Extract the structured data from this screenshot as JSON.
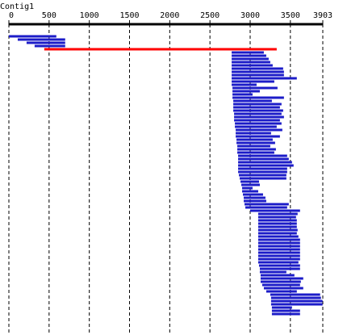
{
  "chart_data": {
    "type": "alignment",
    "title": "Contig1",
    "xlim": [
      0,
      3903
    ],
    "xticks": [
      0,
      500,
      1000,
      1500,
      2000,
      2500,
      3000,
      3500,
      3903
    ],
    "grid": true,
    "bars": [
      {
        "start": 0,
        "end": 590,
        "color": "#1c1cc8"
      },
      {
        "start": 110,
        "end": 700,
        "color": "#1c1cc8"
      },
      {
        "start": 220,
        "end": 700,
        "color": "#1c1cc8"
      },
      {
        "start": 320,
        "end": 700,
        "color": "#1c1cc8"
      },
      {
        "start": 440,
        "end": 3330,
        "color": "#ff0000"
      },
      {
        "start": 2770,
        "end": 3170,
        "color": "#1c1cc8"
      },
      {
        "start": 2770,
        "end": 3200,
        "color": "#1c1cc8"
      },
      {
        "start": 2770,
        "end": 3230,
        "color": "#1c1cc8"
      },
      {
        "start": 2770,
        "end": 3250,
        "color": "#1c1cc8"
      },
      {
        "start": 2770,
        "end": 3280,
        "color": "#1c1cc8"
      },
      {
        "start": 2770,
        "end": 3410,
        "color": "#1c1cc8"
      },
      {
        "start": 2770,
        "end": 3420,
        "color": "#1c1cc8"
      },
      {
        "start": 2770,
        "end": 3420,
        "color": "#1c1cc8"
      },
      {
        "start": 2770,
        "end": 3580,
        "color": "#1c1cc8"
      },
      {
        "start": 2770,
        "end": 3300,
        "color": "#1c1cc8"
      },
      {
        "start": 2770,
        "end": 3080,
        "color": "#1c1cc8"
      },
      {
        "start": 2780,
        "end": 3340,
        "color": "#1c1cc8"
      },
      {
        "start": 2780,
        "end": 3120,
        "color": "#1c1cc8"
      },
      {
        "start": 2780,
        "end": 3030,
        "color": "#1c1cc8"
      },
      {
        "start": 2780,
        "end": 3420,
        "color": "#1c1cc8"
      },
      {
        "start": 2790,
        "end": 3270,
        "color": "#1c1cc8"
      },
      {
        "start": 2790,
        "end": 3390,
        "color": "#1c1cc8"
      },
      {
        "start": 2790,
        "end": 3370,
        "color": "#1c1cc8"
      },
      {
        "start": 2790,
        "end": 3410,
        "color": "#1c1cc8"
      },
      {
        "start": 2800,
        "end": 3390,
        "color": "#1c1cc8"
      },
      {
        "start": 2800,
        "end": 3420,
        "color": "#1c1cc8"
      },
      {
        "start": 2800,
        "end": 3370,
        "color": "#1c1cc8"
      },
      {
        "start": 2810,
        "end": 3390,
        "color": "#1c1cc8"
      },
      {
        "start": 2810,
        "end": 3330,
        "color": "#1c1cc8"
      },
      {
        "start": 2820,
        "end": 3400,
        "color": "#1c1cc8"
      },
      {
        "start": 2820,
        "end": 3260,
        "color": "#1c1cc8"
      },
      {
        "start": 2820,
        "end": 3370,
        "color": "#1c1cc8"
      },
      {
        "start": 2830,
        "end": 3280,
        "color": "#1c1cc8"
      },
      {
        "start": 2830,
        "end": 3310,
        "color": "#1c1cc8"
      },
      {
        "start": 2840,
        "end": 3250,
        "color": "#1c1cc8"
      },
      {
        "start": 2840,
        "end": 3320,
        "color": "#1c1cc8"
      },
      {
        "start": 2840,
        "end": 3300,
        "color": "#1c1cc8"
      },
      {
        "start": 2850,
        "end": 3460,
        "color": "#1c1cc8"
      },
      {
        "start": 2850,
        "end": 3480,
        "color": "#1c1cc8"
      },
      {
        "start": 2850,
        "end": 3520,
        "color": "#1c1cc8"
      },
      {
        "start": 2850,
        "end": 3540,
        "color": "#1c1cc8"
      },
      {
        "start": 2850,
        "end": 3460,
        "color": "#1c1cc8"
      },
      {
        "start": 2850,
        "end": 3460,
        "color": "#1c1cc8"
      },
      {
        "start": 2860,
        "end": 3450,
        "color": "#1c1cc8"
      },
      {
        "start": 2870,
        "end": 3450,
        "color": "#1c1cc8"
      },
      {
        "start": 2880,
        "end": 3110,
        "color": "#1c1cc8"
      },
      {
        "start": 2890,
        "end": 3120,
        "color": "#1c1cc8"
      },
      {
        "start": 2900,
        "end": 3030,
        "color": "#1c1cc8"
      },
      {
        "start": 2900,
        "end": 3100,
        "color": "#1c1cc8"
      },
      {
        "start": 2910,
        "end": 3160,
        "color": "#1c1cc8"
      },
      {
        "start": 2920,
        "end": 3190,
        "color": "#1c1cc8"
      },
      {
        "start": 2920,
        "end": 3200,
        "color": "#1c1cc8"
      },
      {
        "start": 2930,
        "end": 3480,
        "color": "#1c1cc8"
      },
      {
        "start": 2940,
        "end": 3460,
        "color": "#1c1cc8"
      },
      {
        "start": 3000,
        "end": 3620,
        "color": "#1c1cc8"
      },
      {
        "start": 3100,
        "end": 3590,
        "color": "#1c1cc8"
      },
      {
        "start": 3100,
        "end": 3570,
        "color": "#1c1cc8"
      },
      {
        "start": 3100,
        "end": 3580,
        "color": "#1c1cc8"
      },
      {
        "start": 3100,
        "end": 3580,
        "color": "#1c1cc8"
      },
      {
        "start": 3100,
        "end": 3580,
        "color": "#1c1cc8"
      },
      {
        "start": 3100,
        "end": 3590,
        "color": "#1c1cc8"
      },
      {
        "start": 3100,
        "end": 3580,
        "color": "#1c1cc8"
      },
      {
        "start": 3100,
        "end": 3600,
        "color": "#1c1cc8"
      },
      {
        "start": 3100,
        "end": 3620,
        "color": "#1c1cc8"
      },
      {
        "start": 3100,
        "end": 3620,
        "color": "#1c1cc8"
      },
      {
        "start": 3100,
        "end": 3620,
        "color": "#1c1cc8"
      },
      {
        "start": 3100,
        "end": 3620,
        "color": "#1c1cc8"
      },
      {
        "start": 3100,
        "end": 3620,
        "color": "#1c1cc8"
      },
      {
        "start": 3100,
        "end": 3620,
        "color": "#1c1cc8"
      },
      {
        "start": 3100,
        "end": 3620,
        "color": "#1c1cc8"
      },
      {
        "start": 3100,
        "end": 3600,
        "color": "#1c1cc8"
      },
      {
        "start": 3110,
        "end": 3620,
        "color": "#1c1cc8"
      },
      {
        "start": 3120,
        "end": 3620,
        "color": "#1c1cc8"
      },
      {
        "start": 3120,
        "end": 3450,
        "color": "#1c1cc8"
      },
      {
        "start": 3130,
        "end": 3550,
        "color": "#1c1cc8"
      },
      {
        "start": 3130,
        "end": 3660,
        "color": "#1c1cc8"
      },
      {
        "start": 3130,
        "end": 3630,
        "color": "#1c1cc8"
      },
      {
        "start": 3150,
        "end": 3620,
        "color": "#1c1cc8"
      },
      {
        "start": 3170,
        "end": 3660,
        "color": "#1c1cc8"
      },
      {
        "start": 3200,
        "end": 3580,
        "color": "#1c1cc8"
      },
      {
        "start": 3250,
        "end": 3870,
        "color": "#1c1cc8"
      },
      {
        "start": 3260,
        "end": 3880,
        "color": "#1c1cc8"
      },
      {
        "start": 3260,
        "end": 3900,
        "color": "#1c1cc8"
      },
      {
        "start": 3260,
        "end": 3900,
        "color": "#1c1cc8"
      },
      {
        "start": 3270,
        "end": 3520,
        "color": "#1c1cc8"
      },
      {
        "start": 3270,
        "end": 3620,
        "color": "#1c1cc8"
      },
      {
        "start": 3270,
        "end": 3620,
        "color": "#1c1cc8"
      }
    ]
  }
}
